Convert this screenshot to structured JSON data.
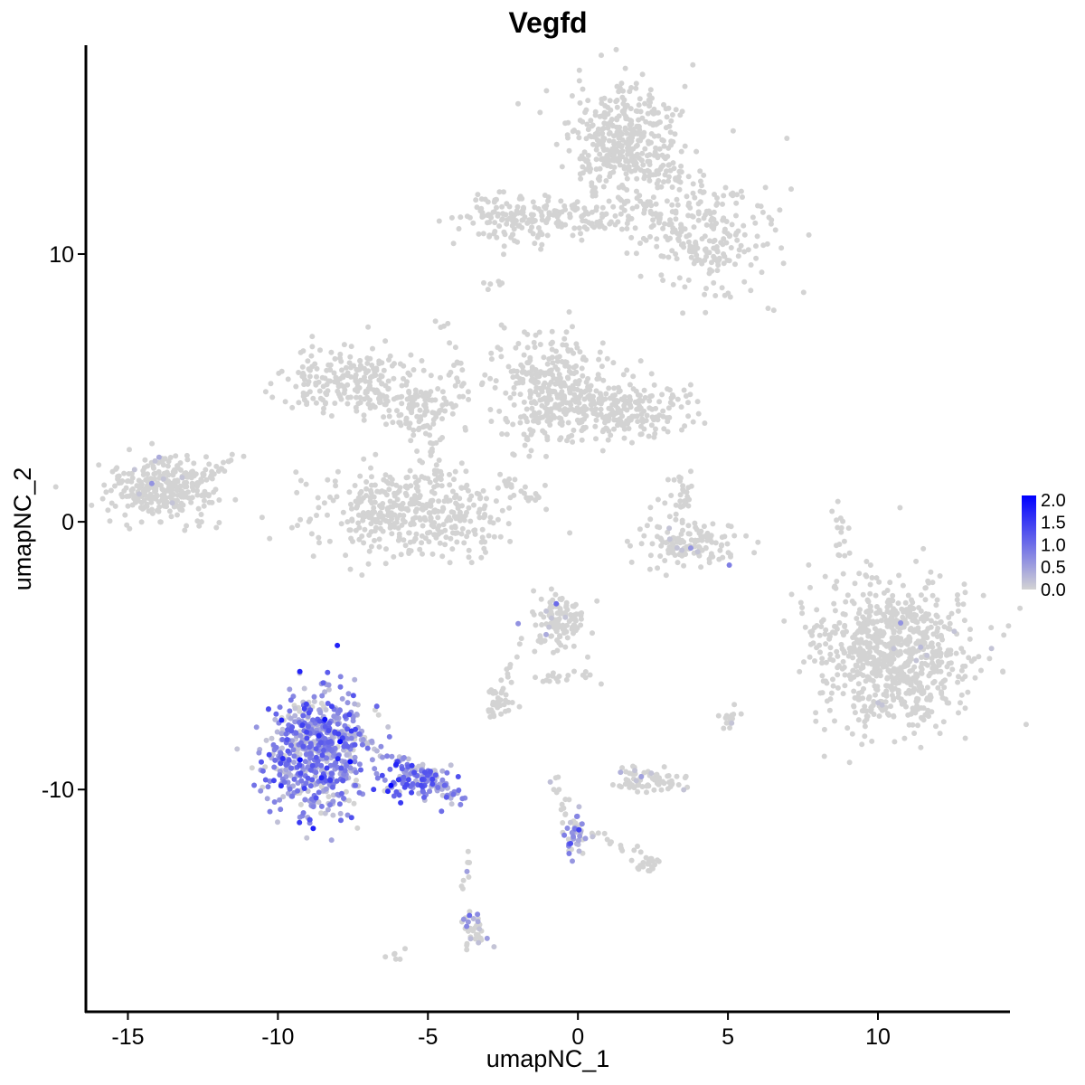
{
  "chart_data": {
    "type": "scatter",
    "title": "Vegfd",
    "xlabel": "umapNC_1",
    "ylabel": "umapNC_2",
    "xlim": [
      -16.4,
      14.4
    ],
    "ylim": [
      -18.3,
      17.8
    ],
    "x_ticks": [
      -15,
      -10,
      -5,
      0,
      5,
      10
    ],
    "x_tick_labels": [
      "-15",
      "-10",
      "-5",
      "0",
      "5",
      "10"
    ],
    "y_ticks": [
      -10,
      0,
      10
    ],
    "y_tick_labels": [
      "-10",
      "0",
      "10"
    ],
    "grid": false,
    "legend_placement": "right",
    "color_scale": {
      "low_color": "#d3d3d3",
      "high_color": "#0000ff",
      "min": 0.0,
      "max": 2.1,
      "ticks": [
        0.0,
        0.5,
        1.0,
        1.5,
        2.0
      ],
      "tick_labels": [
        "0.0",
        "0.5",
        "1.0",
        "1.5",
        "2.0"
      ]
    },
    "clusters": [
      {
        "cx": 1.6,
        "cy": 14.0,
        "sx": 0.9,
        "sy": 1.1,
        "n": 420,
        "expr": 0.0
      },
      {
        "cx": 4.3,
        "cy": 10.8,
        "sx": 1.2,
        "sy": 1.2,
        "n": 220,
        "expr": 0.0
      },
      {
        "cx": -2.3,
        "cy": 11.3,
        "sx": 0.8,
        "sy": 0.45,
        "n": 130,
        "expr": 0.0
      },
      {
        "cx": 0.5,
        "cy": 11.3,
        "sx": 1.0,
        "sy": 0.4,
        "n": 60,
        "expr": 0.0
      },
      {
        "cx": -7.3,
        "cy": 5.3,
        "sx": 1.1,
        "sy": 0.7,
        "n": 230,
        "expr": 0.0
      },
      {
        "cx": -5.2,
        "cy": 4.2,
        "sx": 0.6,
        "sy": 0.6,
        "n": 90,
        "expr": 0.0
      },
      {
        "cx": -5.6,
        "cy": 0.4,
        "sx": 1.6,
        "sy": 0.9,
        "n": 430,
        "expr": 0.0
      },
      {
        "cx": -13.8,
        "cy": 1.2,
        "sx": 0.9,
        "sy": 0.6,
        "n": 300,
        "expr": 0.02
      },
      {
        "cx": -0.9,
        "cy": 5.0,
        "sx": 0.9,
        "sy": 1.0,
        "n": 300,
        "expr": 0.0
      },
      {
        "cx": 1.6,
        "cy": 4.2,
        "sx": 1.2,
        "sy": 0.5,
        "n": 220,
        "expr": 0.0
      },
      {
        "cx": 3.6,
        "cy": -0.8,
        "sx": 0.9,
        "sy": 0.5,
        "n": 130,
        "expr": 0.02
      },
      {
        "cx": 3.4,
        "cy": 0.8,
        "sx": 0.3,
        "sy": 0.5,
        "n": 30,
        "expr": 0.0
      },
      {
        "cx": 10.5,
        "cy": -5.0,
        "sx": 1.3,
        "sy": 1.4,
        "n": 800,
        "expr": 0.01
      },
      {
        "cx": -0.7,
        "cy": -3.7,
        "sx": 0.5,
        "sy": 0.6,
        "n": 110,
        "expr": 0.06
      },
      {
        "cx": -2.6,
        "cy": -6.8,
        "sx": 0.3,
        "sy": 0.3,
        "n": 35,
        "expr": 0.0
      },
      {
        "cx": 2.3,
        "cy": -9.6,
        "sx": 0.55,
        "sy": 0.22,
        "n": 70,
        "expr": 0.04
      },
      {
        "cx": -8.7,
        "cy": -8.6,
        "sx": 0.85,
        "sy": 1.1,
        "n": 650,
        "expr": 0.55
      },
      {
        "cx": -5.2,
        "cy": -9.6,
        "sx": 0.6,
        "sy": 0.35,
        "n": 110,
        "expr": 0.65
      },
      {
        "cx": -0.1,
        "cy": -11.8,
        "sx": 0.2,
        "sy": 0.35,
        "n": 40,
        "expr": 0.45
      },
      {
        "cx": 2.3,
        "cy": -12.7,
        "sx": 0.3,
        "sy": 0.2,
        "n": 22,
        "expr": 0.0
      },
      {
        "cx": -3.5,
        "cy": -15.3,
        "sx": 0.25,
        "sy": 0.4,
        "n": 35,
        "expr": 0.25
      },
      {
        "cx": 5.0,
        "cy": -7.4,
        "sx": 0.2,
        "sy": 0.2,
        "n": 14,
        "expr": 0.05
      },
      {
        "cx": -6.0,
        "cy": -16.2,
        "sx": 0.15,
        "sy": 0.1,
        "n": 6,
        "expr": 0.0
      },
      {
        "cx": 8.7,
        "cy": -0.2,
        "sx": 0.12,
        "sy": 0.5,
        "n": 14,
        "expr": 0.0
      }
    ],
    "trails": [
      {
        "from": [
          -1.2,
          11.6
        ],
        "to": [
          1.0,
          11.2
        ],
        "n": 25,
        "expr": 0.0
      },
      {
        "from": [
          2.0,
          12.2
        ],
        "to": [
          4.6,
          9.2
        ],
        "n": 40,
        "expr": 0.0
      },
      {
        "from": [
          -4.5,
          7.6
        ],
        "to": [
          -3.8,
          4.6
        ],
        "n": 20,
        "expr": 0.0
      },
      {
        "from": [
          -4.9,
          3.2
        ],
        "to": [
          -4.6,
          1.4
        ],
        "n": 14,
        "expr": 0.0
      },
      {
        "from": [
          -2.1,
          2.5
        ],
        "to": [
          -1.2,
          4.0
        ],
        "n": 14,
        "expr": 0.0
      },
      {
        "from": [
          -2.4,
          1.6
        ],
        "to": [
          -1.3,
          0.7
        ],
        "n": 16,
        "expr": 0.0
      },
      {
        "from": [
          -12.8,
          1.2
        ],
        "to": [
          -11.2,
          2.8
        ],
        "n": 16,
        "expr": 0.0
      },
      {
        "from": [
          -1.3,
          -5.8
        ],
        "to": [
          0.8,
          -5.8
        ],
        "n": 18,
        "expr": 0.0
      },
      {
        "from": [
          -1.8,
          -4.2
        ],
        "to": [
          -2.6,
          -6.6
        ],
        "n": 12,
        "expr": 0.0
      },
      {
        "from": [
          -7.5,
          -8.0
        ],
        "to": [
          -5.0,
          -9.5
        ],
        "n": 40,
        "expr": 0.55
      },
      {
        "from": [
          -5.0,
          -9.6
        ],
        "to": [
          -3.9,
          -10.4
        ],
        "n": 25,
        "expr": 0.5
      },
      {
        "from": [
          -0.9,
          -9.4
        ],
        "to": [
          -0.2,
          -11.2
        ],
        "n": 14,
        "expr": 0.1
      },
      {
        "from": [
          0.2,
          -11.5
        ],
        "to": [
          2.0,
          -12.4
        ],
        "n": 14,
        "expr": 0.0
      },
      {
        "from": [
          -3.8,
          -12.4
        ],
        "to": [
          -3.7,
          -13.8
        ],
        "n": 8,
        "expr": 0.1
      },
      {
        "from": [
          -3.3,
          9.0
        ],
        "to": [
          -2.6,
          8.8
        ],
        "n": 6,
        "expr": 0.0
      }
    ]
  }
}
